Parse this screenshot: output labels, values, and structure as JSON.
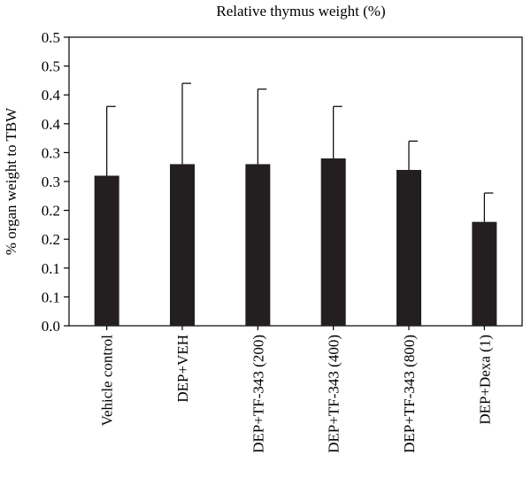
{
  "chart_data": {
    "type": "bar",
    "title": "Relative thymus weight (%)",
    "xlabel": "",
    "ylabel": "% organ weight to TBW",
    "categories": [
      "Vehicle control",
      "DEP+VEH",
      "DEP+TF-343 (200)",
      "DEP+TF-343 (400)",
      "DEP+TF-343 (800)",
      "DEP+Dexa (1)"
    ],
    "values": [
      0.26,
      0.28,
      0.28,
      0.29,
      0.27,
      0.18
    ],
    "error_upper": [
      0.12,
      0.14,
      0.13,
      0.09,
      0.05,
      0.05
    ],
    "ytick_labels": [
      "0.0",
      "0.1",
      "0.1",
      "0.2",
      "0.2",
      "0.3",
      "0.3",
      "0.4",
      "0.4",
      "0.5",
      "0.5"
    ],
    "ylim": [
      0,
      0.5
    ],
    "grid": false,
    "bar_color": "#231f20"
  }
}
